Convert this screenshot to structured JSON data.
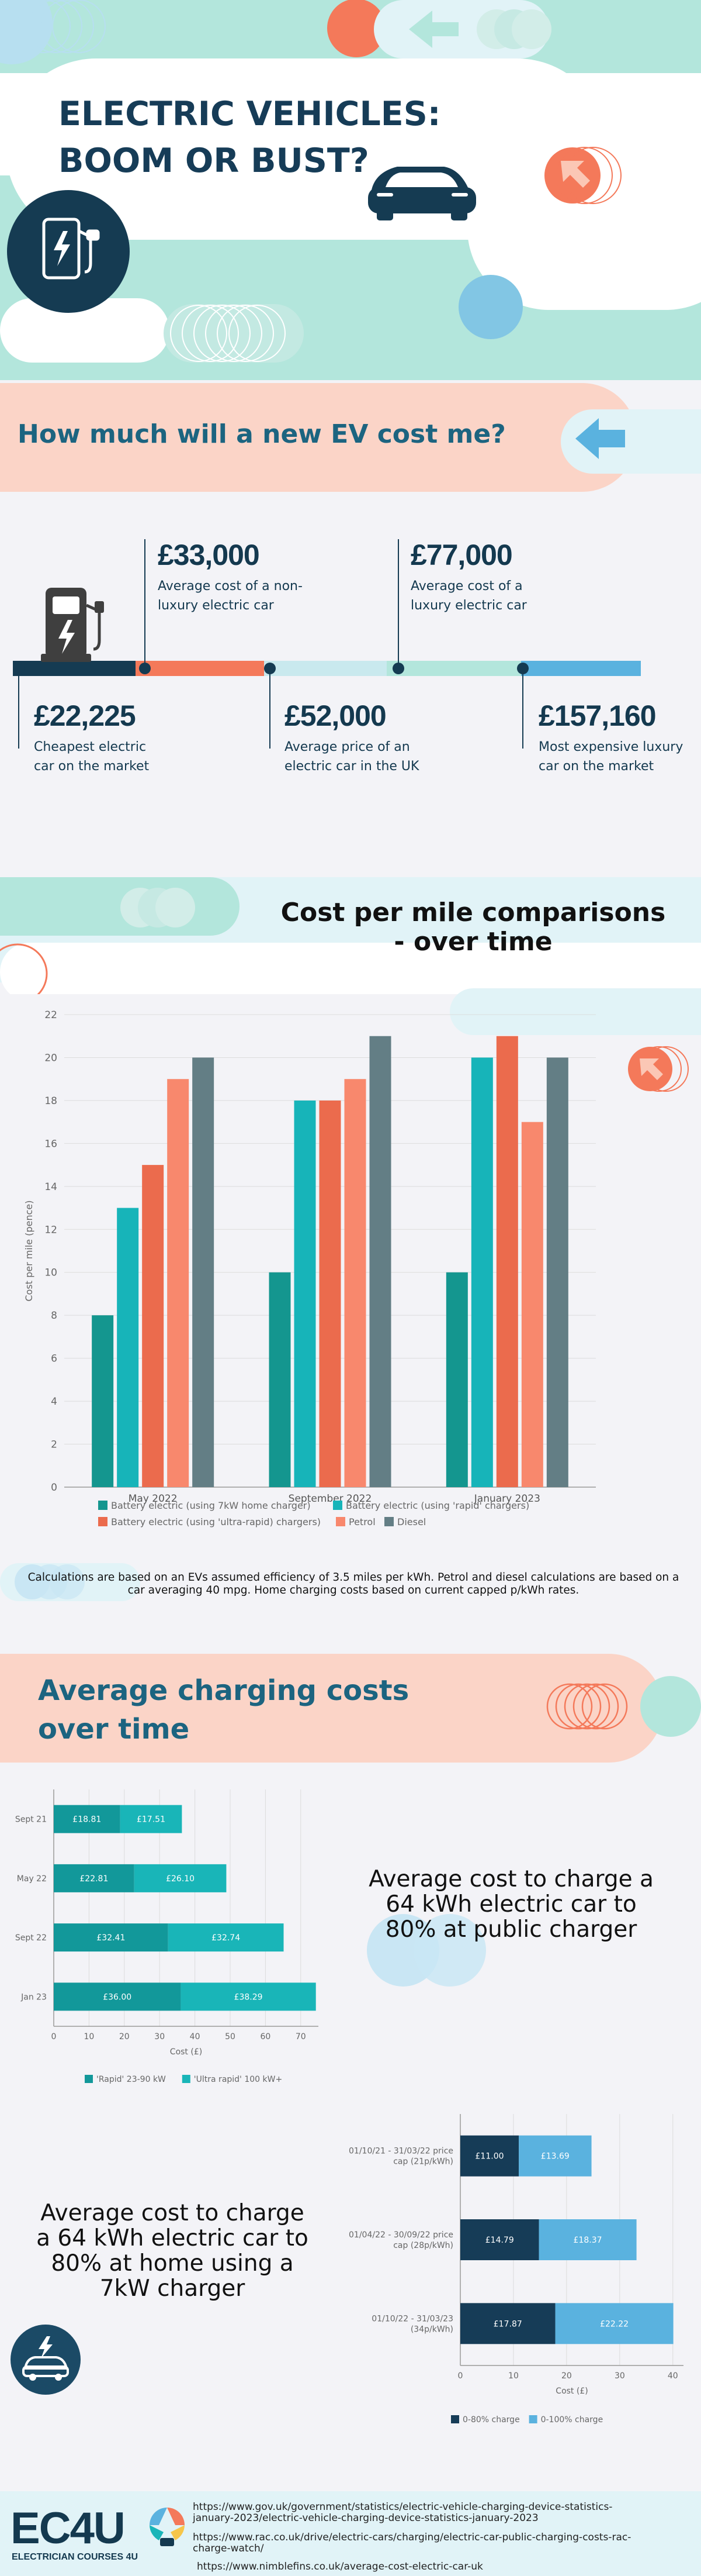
{
  "hero": {
    "title_line1": "ELECTRIC VEHICLES:",
    "title_line2": "BOOM OR BUST?",
    "colors": {
      "navy": "#153b52",
      "mint": "#b3e6dc",
      "orange": "#f4795a",
      "light": "#e1f3f7"
    }
  },
  "cost_section": {
    "title": "How much will a new EV cost me?",
    "top_items": [
      {
        "price": "£33,000",
        "desc_line1": "Average cost of a non-",
        "desc_line2": "luxury electric car"
      },
      {
        "price": "£77,000",
        "desc_line1": "Average cost of a",
        "desc_line2": "luxury electric car"
      }
    ],
    "bottom_items": [
      {
        "price": "£22,225",
        "desc_line1": "Cheapest electric",
        "desc_line2": "car on the market"
      },
      {
        "price": "£52,000",
        "desc_line1": "Average price of an",
        "desc_line2": "electric car in the UK"
      },
      {
        "price": "£157,160",
        "desc_line1": "Most expensive luxury",
        "desc_line2": "car on the market"
      }
    ]
  },
  "cpm_section": {
    "title_line1": "Cost per mile comparisons",
    "title_line2": "- over time",
    "note": "Calculations are based on an EVs assumed efficiency of 3.5 miles per kWh. Petrol and diesel calculations are based on a car averaging 40 mpg. Home charging costs based on current capped p/kWh rates."
  },
  "charging_section": {
    "title_line1": "Average charging costs",
    "title_line2": "over time",
    "public_text": "Average cost to charge a 64 kWh electric car to 80% at public charger",
    "home_text": "Average cost to charge a 64 kWh electric car to 80% at home using a 7kW charger"
  },
  "footer": {
    "logo_text": "EC4U",
    "logo_sub": "ELECTRICIAN COURSES 4U",
    "sources": [
      "https://www.gov.uk/government/statistics/electric-vehicle-charging-device-statistics-january-2023/electric-vehicle-charging-device-statistics-january-2023",
      "https://www.rac.co.uk/drive/electric-cars/charging/electric-car-public-charging-costs-rac-charge-watch/",
      "https://www.nimblefins.co.uk/average-cost-electric-car-uk"
    ]
  },
  "chart_data": [
    {
      "type": "bar",
      "title": "",
      "ylabel": "Cost per mile (pence)",
      "ylim": [
        0,
        22
      ],
      "grid": true,
      "legend_placement": "bottom",
      "categories": [
        "May 2022",
        "September 2022",
        "January 2023"
      ],
      "yticks": [
        "0",
        "2",
        "4",
        "6",
        "8",
        "10",
        "12",
        "14",
        "16",
        "18",
        "20",
        "22"
      ],
      "series": [
        {
          "name": "Battery electric (using 7kW home charger)",
          "color": "#14968f",
          "values": [
            8,
            10,
            10
          ]
        },
        {
          "name": "Battery electric (using 'rapid' chargers)",
          "color": "#17b4b9",
          "values": [
            13,
            18,
            20
          ]
        },
        {
          "name": "Battery electric (using 'ultra-rapid) chargers)",
          "color": "#eb6b4d",
          "values": [
            15,
            18,
            21
          ]
        },
        {
          "name": "Petrol",
          "color": "#f8886d",
          "values": [
            19,
            19,
            17
          ]
        },
        {
          "name": "Diesel",
          "color": "#637e85",
          "values": [
            20,
            21,
            20
          ]
        }
      ]
    },
    {
      "type": "bar",
      "orientation": "horizontal-stacked",
      "xlabel": "Cost (£)",
      "xlim": [
        0,
        75
      ],
      "xticks": [
        "0",
        "10",
        "20",
        "30",
        "40",
        "50",
        "60",
        "70"
      ],
      "legend_placement": "bottom",
      "categories": [
        "Sept 21",
        "May 22",
        "Sept 22",
        "Jan 23"
      ],
      "series": [
        {
          "name": "'Rapid' 23-90 kW",
          "color": "#12989a",
          "values": [
            18.81,
            22.81,
            32.41,
            36.0
          ],
          "labels": [
            "£18.81",
            "£22.81",
            "£32.41",
            "£36.00"
          ]
        },
        {
          "name": "'Ultra rapid' 100 kW+",
          "color": "#19b5b8",
          "values": [
            17.51,
            26.1,
            32.74,
            38.29
          ],
          "labels": [
            "£17.51",
            "£26.10",
            "£32.74",
            "£38.29"
          ]
        }
      ]
    },
    {
      "type": "bar",
      "orientation": "horizontal-stacked",
      "xlabel": "Cost (£)",
      "xlim": [
        0,
        42
      ],
      "xticks": [
        "0",
        "10",
        "20",
        "30",
        "40"
      ],
      "legend_placement": "bottom",
      "categories": [
        "01/10/21 - 31/03/22 price cap (21p/kWh)",
        "01/04/22 - 30/09/22 price cap (28p/kWh)",
        "01/10/22 - 31/03/23 (34p/kWh)"
      ],
      "category_lines": [
        [
          "01/10/21 - 31/03/22 price",
          "cap (21p/kWh)"
        ],
        [
          "01/04/22 - 30/09/22 price",
          "cap (28p/kWh)"
        ],
        [
          "01/10/22 - 31/03/23",
          "(34p/kWh)"
        ]
      ],
      "series": [
        {
          "name": "0-80% charge",
          "color": "#163c57",
          "values": [
            11.0,
            14.79,
            17.87
          ],
          "labels": [
            "£11.00",
            "£14.79",
            "£17.87"
          ]
        },
        {
          "name": "0-100% charge",
          "color": "#5ab2df",
          "values": [
            13.69,
            18.37,
            22.22
          ],
          "labels": [
            "£13.69",
            "£18.37",
            "£22.22"
          ]
        }
      ]
    }
  ]
}
